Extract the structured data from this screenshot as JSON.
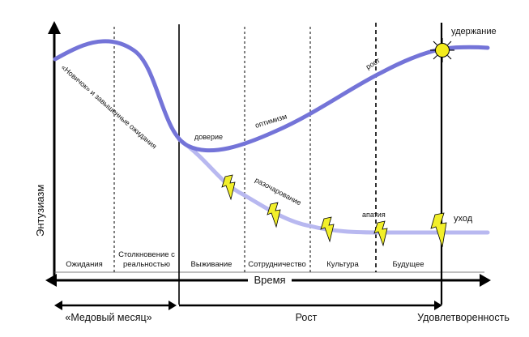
{
  "y_axis_label": "Энтузиазм",
  "x_axis_label": "Время",
  "phases": [
    {
      "label": "Ожидания"
    },
    {
      "label_line1": "Столкновение с",
      "label_line2": "реальностью"
    },
    {
      "label": "Выживание"
    },
    {
      "label": "Сотрудничество"
    },
    {
      "label": "Культура"
    },
    {
      "label": "Будущее"
    }
  ],
  "curve_labels": {
    "novice": "«Новичок» и завышенные ожидания",
    "trust": "доверие",
    "optimism": "оптимизм",
    "growth": "рост",
    "retention": "удержание",
    "disappointment": "разочарование",
    "apathy": "апатия",
    "leave": "уход"
  },
  "stages": {
    "honeymoon": "«Медовый месяц»",
    "growth": "Рост",
    "satisfaction": "Удовлетворенность"
  },
  "colors": {
    "upper_curve": "#7474d8",
    "lower_curve": "#b4b4ee",
    "lightning": "#f2ef2a",
    "sun": "#f4ec1e"
  }
}
